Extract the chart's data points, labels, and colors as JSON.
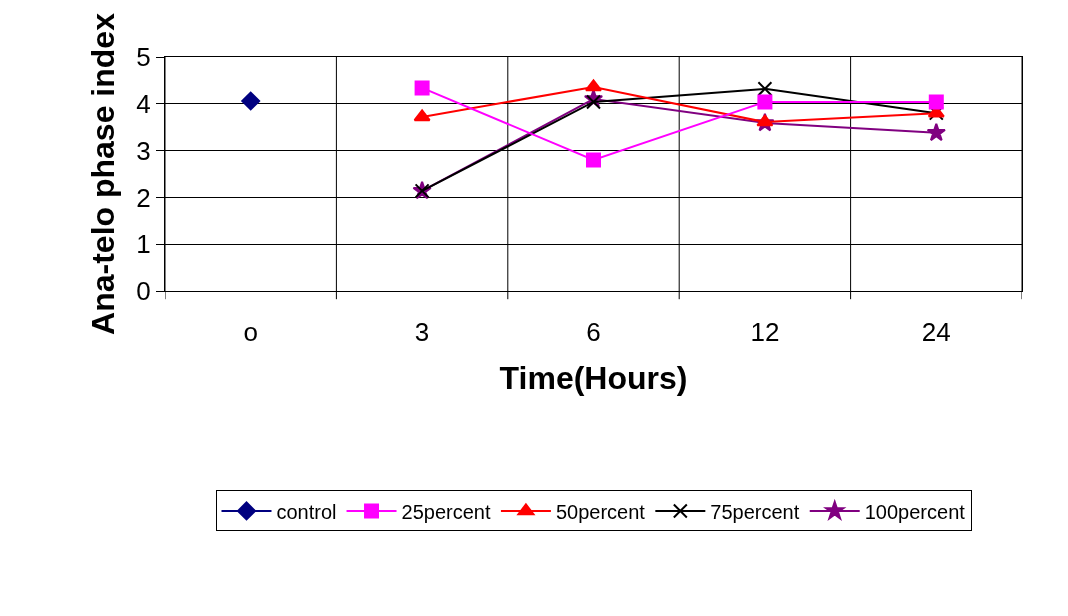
{
  "chart_data": {
    "type": "line",
    "xlabel": "Time(Hours)",
    "ylabel": "Ana-telo phase index",
    "categories": [
      "o",
      "3",
      "6",
      "12",
      "24"
    ],
    "series": [
      {
        "name": "control",
        "color": "#000080",
        "marker": "diamond",
        "values": [
          4.06,
          null,
          null,
          null,
          null
        ]
      },
      {
        "name": "25percent",
        "color": "#ff00ff",
        "marker": "square",
        "values": [
          null,
          4.34,
          2.8,
          4.04,
          4.04
        ]
      },
      {
        "name": "50percent",
        "color": "#ff0000",
        "marker": "triangle",
        "values": [
          null,
          3.72,
          4.36,
          3.61,
          3.8
        ]
      },
      {
        "name": "75percent",
        "color": "#000000",
        "marker": "cross",
        "values": [
          null,
          2.14,
          4.04,
          4.32,
          3.8
        ]
      },
      {
        "name": "100percent",
        "color": "#800080",
        "marker": "star",
        "values": [
          null,
          2.14,
          4.1,
          3.59,
          3.38
        ]
      }
    ],
    "ylim": [
      0,
      5
    ],
    "yticks": [
      0,
      1,
      2,
      3,
      4,
      5
    ],
    "grid": true,
    "legend": "bottom",
    "line_style": "solid"
  }
}
